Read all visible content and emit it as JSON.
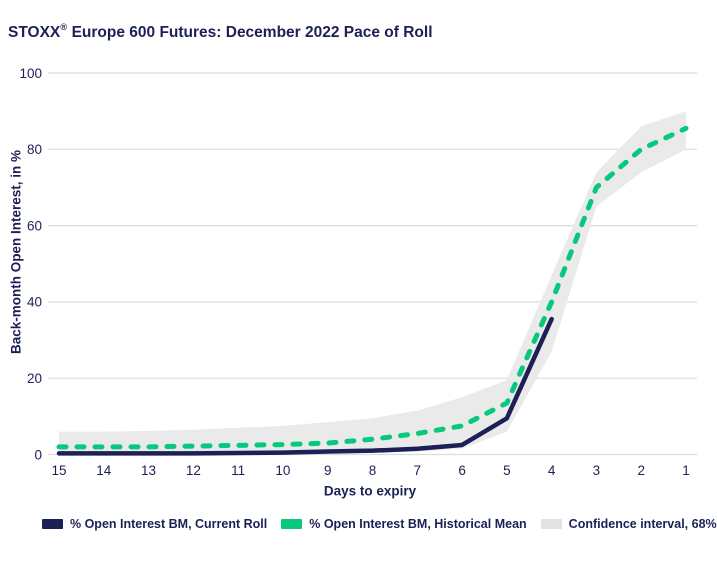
{
  "header": {
    "title_main": "STOXX",
    "title_reg": "®",
    "title_rest": " Europe 600 Futures: December 2022 Pace of Roll"
  },
  "axes": {
    "ylabel": "Back-month Open Interest, in %",
    "xlabel": "Days to expiry"
  },
  "legend": {
    "items": [
      {
        "label": "% Open Interest BM, Current Roll",
        "color": "#1c2057"
      },
      {
        "label": "% Open Interest BM, Historical Mean",
        "color": "#06c97d"
      },
      {
        "label": "Confidence interval, 68%",
        "color": "#e3e3e3"
      }
    ]
  },
  "colors": {
    "navy": "#1c2057",
    "green": "#06c97d",
    "band": "#eaeaea",
    "grid": "#dcdcdc",
    "background": "#ffffff"
  },
  "chart_data": {
    "type": "line",
    "title": "STOXX® Europe 600 Futures: December 2022 Pace of Roll",
    "xlabel": "Days to expiry",
    "ylabel": "Back-month Open Interest, in %",
    "x": [
      15,
      14,
      13,
      12,
      11,
      10,
      9,
      8,
      7,
      6,
      5,
      4,
      3,
      2,
      1
    ],
    "x_axis_reversed": true,
    "ylim": [
      0,
      100
    ],
    "yticks": [
      0,
      20,
      40,
      60,
      80,
      100
    ],
    "grid": "horizontal",
    "legend_position": "bottom",
    "series": [
      {
        "name": "Confidence interval, 68%",
        "type": "band",
        "color": "#eaeaea",
        "x": [
          15,
          14,
          13,
          12,
          11,
          10,
          9,
          8,
          7,
          6,
          5,
          4,
          3,
          2,
          1
        ],
        "upper": [
          6.0,
          6.0,
          6.2,
          6.5,
          7.0,
          7.5,
          8.5,
          9.5,
          11.5,
          15.0,
          19.5,
          47.0,
          74.0,
          86.0,
          90.0
        ],
        "lower": [
          0.2,
          0.2,
          0.2,
          0.2,
          0.2,
          0.3,
          0.3,
          0.5,
          0.8,
          1.5,
          6.0,
          27.0,
          65.0,
          74.0,
          80.0
        ]
      },
      {
        "name": "% Open Interest BM, Current Roll",
        "type": "line",
        "style": "solid",
        "color": "#1c2057",
        "x": [
          15,
          14,
          13,
          12,
          11,
          10,
          9,
          8,
          7,
          6,
          5,
          4
        ],
        "values": [
          0.3,
          0.3,
          0.3,
          0.3,
          0.4,
          0.5,
          0.8,
          1.0,
          1.5,
          2.5,
          9.5,
          35.5
        ]
      },
      {
        "name": "% Open Interest BM, Historical Mean",
        "type": "line",
        "style": "dashed",
        "color": "#06c97d",
        "x": [
          15,
          14,
          13,
          12,
          11,
          10,
          9,
          8,
          7,
          6,
          5,
          4,
          3,
          2,
          1
        ],
        "values": [
          2.0,
          2.0,
          2.0,
          2.2,
          2.4,
          2.6,
          3.0,
          4.0,
          5.5,
          7.5,
          13.5,
          40.0,
          70.0,
          80.0,
          85.5
        ]
      }
    ]
  }
}
